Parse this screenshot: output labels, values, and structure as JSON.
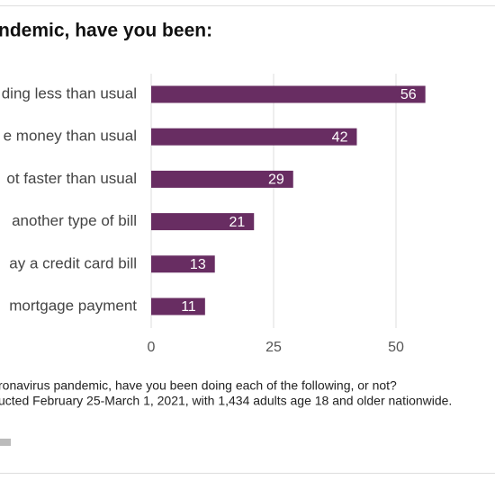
{
  "chart_data": {
    "type": "bar",
    "orientation": "horizontal",
    "title": "ndemic, have you been:",
    "categories": [
      "ding less than usual",
      "e money than usual",
      "ot faster than usual",
      "another type of bill",
      "ay a credit card bill",
      "mortgage payment"
    ],
    "values": [
      56,
      42,
      29,
      21,
      13,
      11
    ],
    "color": "#682d62",
    "xlim": [
      0,
      56
    ],
    "xticks": [
      0,
      25,
      50
    ],
    "grid": true,
    "notes": [
      "ronavirus pandemic, have you been doing each of the following, or not?",
      "ucted February 25-March 1, 2021, with 1,434 adults age 18 and older nationwide."
    ]
  }
}
